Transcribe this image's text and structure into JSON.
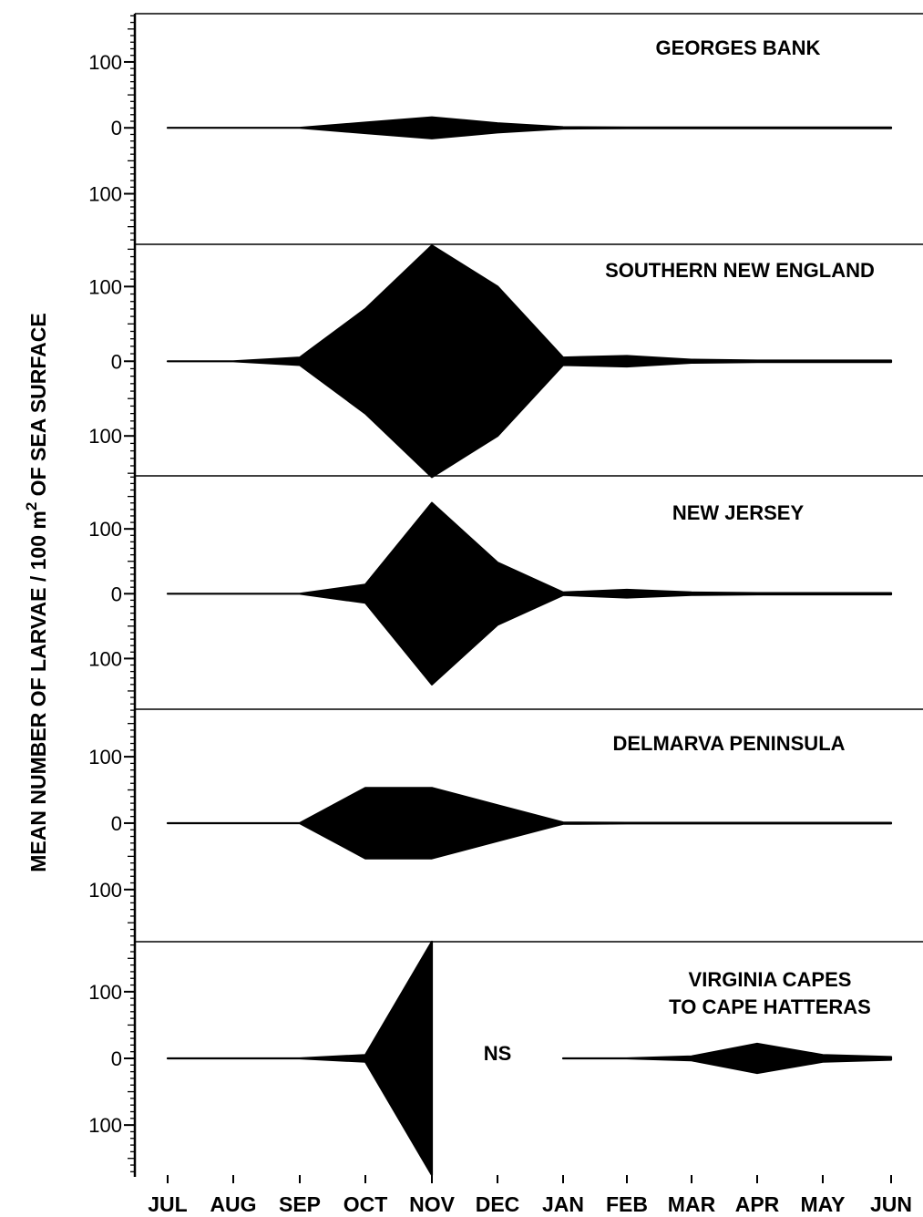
{
  "chart_data": {
    "type": "area",
    "ylabel_parts": [
      "MEAN NUMBER OF LARVAE / 100 m",
      "2",
      " OF SEA SURFACE"
    ],
    "months": [
      "JUL",
      "AUG",
      "SEP",
      "OCT",
      "NOV",
      "DEC",
      "JAN",
      "FEB",
      "MAR",
      "APR",
      "MAY",
      "JUN"
    ],
    "y_tick_labels": [
      "100",
      "0",
      "100"
    ],
    "y_tick_values": [
      100,
      0,
      -100
    ],
    "note": "Kite diagram: each shape is symmetric about 0; half-width equals mean number of larvae per 100 m2 of sea surface.",
    "panels": [
      {
        "name": "GEORGES BANK",
        "ylim": [
          -175,
          175
        ],
        "values": [
          0,
          0,
          0,
          8,
          16,
          7,
          1,
          0.5,
          0.5,
          0.5,
          0.5,
          0.5
        ]
      },
      {
        "name": "SOUTHERN NEW ENGLAND",
        "ylim": [
          -155,
          155
        ],
        "values": [
          0,
          0,
          5,
          70,
          155,
          100,
          5,
          7,
          2,
          1,
          1,
          1
        ]
      },
      {
        "name": "NEW JERSEY",
        "ylim": [
          -180,
          180
        ],
        "values": [
          0,
          0,
          0,
          14,
          140,
          48,
          2,
          6,
          2,
          1,
          1,
          1
        ]
      },
      {
        "name": "DELMARVA PENINSULA",
        "ylim": [
          -175,
          175
        ],
        "values": [
          0,
          0,
          0,
          53,
          53,
          27,
          1,
          0.5,
          0.5,
          0.5,
          0.5,
          0.5
        ]
      },
      {
        "name_lines": [
          "VIRGINIA CAPES",
          "TO CAPE HATTERAS"
        ],
        "ylim": [
          -175,
          175
        ],
        "values": [
          0,
          0,
          0,
          5,
          175,
          null,
          0,
          0,
          3,
          22,
          5,
          2
        ],
        "not_sampled_label": "NS"
      }
    ]
  }
}
